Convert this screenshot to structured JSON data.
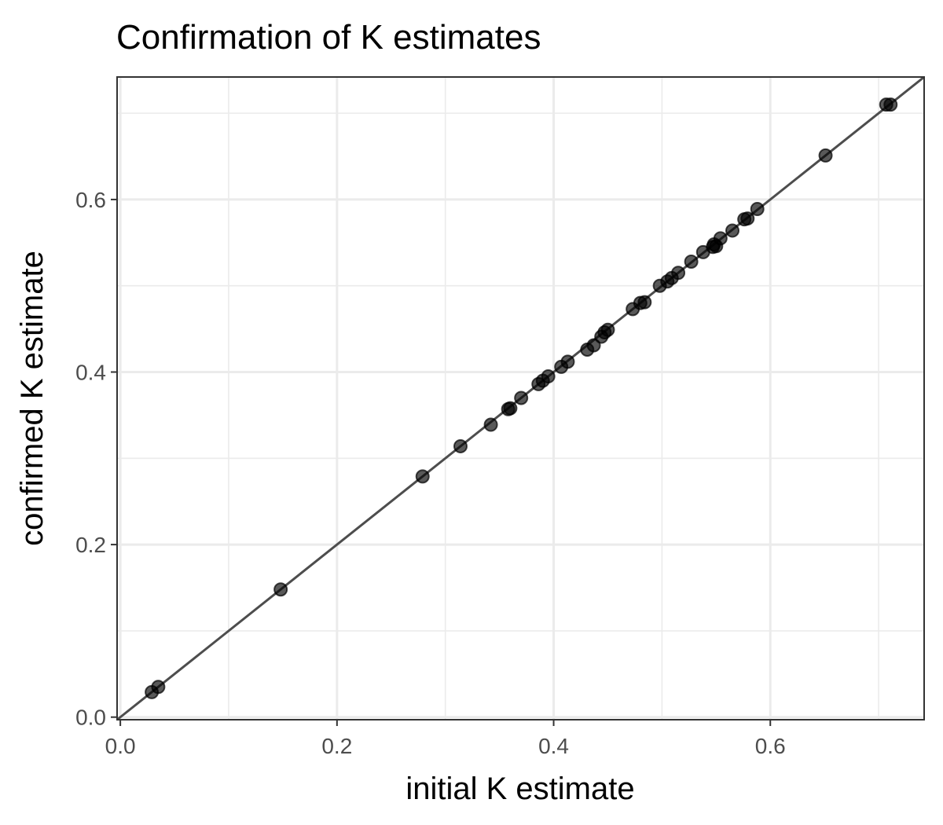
{
  "chart_data": {
    "type": "scatter",
    "title": "Confirmation of K estimates",
    "xlabel": "initial K estimate",
    "ylabel": "confirmed K estimate",
    "xlim": [
      -0.003,
      0.742
    ],
    "ylim": [
      -0.003,
      0.742
    ],
    "x_ticks": [
      0.0,
      0.2,
      0.4,
      0.6
    ],
    "y_ticks": [
      0.0,
      0.2,
      0.4,
      0.6
    ],
    "x_tick_labels": [
      "0.0",
      "0.2",
      "0.4",
      "0.6"
    ],
    "y_tick_labels": [
      "0.0",
      "0.2",
      "0.4",
      "0.6"
    ],
    "grid": true,
    "reference_line": {
      "slope": 1,
      "intercept": 0
    },
    "points": [
      {
        "x": 0.029,
        "y": 0.029
      },
      {
        "x": 0.035,
        "y": 0.035
      },
      {
        "x": 0.148,
        "y": 0.148
      },
      {
        "x": 0.279,
        "y": 0.279
      },
      {
        "x": 0.314,
        "y": 0.314
      },
      {
        "x": 0.342,
        "y": 0.339
      },
      {
        "x": 0.358,
        "y": 0.357
      },
      {
        "x": 0.36,
        "y": 0.358
      },
      {
        "x": 0.37,
        "y": 0.37
      },
      {
        "x": 0.386,
        "y": 0.386
      },
      {
        "x": 0.39,
        "y": 0.39
      },
      {
        "x": 0.395,
        "y": 0.395
      },
      {
        "x": 0.407,
        "y": 0.406
      },
      {
        "x": 0.413,
        "y": 0.412
      },
      {
        "x": 0.431,
        "y": 0.426
      },
      {
        "x": 0.437,
        "y": 0.431
      },
      {
        "x": 0.444,
        "y": 0.441
      },
      {
        "x": 0.447,
        "y": 0.446
      },
      {
        "x": 0.45,
        "y": 0.449
      },
      {
        "x": 0.473,
        "y": 0.473
      },
      {
        "x": 0.48,
        "y": 0.48
      },
      {
        "x": 0.484,
        "y": 0.481
      },
      {
        "x": 0.498,
        "y": 0.5
      },
      {
        "x": 0.505,
        "y": 0.505
      },
      {
        "x": 0.509,
        "y": 0.509
      },
      {
        "x": 0.515,
        "y": 0.515
      },
      {
        "x": 0.527,
        "y": 0.528
      },
      {
        "x": 0.538,
        "y": 0.539
      },
      {
        "x": 0.547,
        "y": 0.545
      },
      {
        "x": 0.548,
        "y": 0.548
      },
      {
        "x": 0.55,
        "y": 0.546
      },
      {
        "x": 0.554,
        "y": 0.555
      },
      {
        "x": 0.565,
        "y": 0.564
      },
      {
        "x": 0.576,
        "y": 0.577
      },
      {
        "x": 0.579,
        "y": 0.578
      },
      {
        "x": 0.588,
        "y": 0.589
      },
      {
        "x": 0.651,
        "y": 0.651
      },
      {
        "x": 0.707,
        "y": 0.71
      },
      {
        "x": 0.711,
        "y": 0.71
      }
    ],
    "colors": {
      "point": "#000000",
      "reference_line": "#4d4d4d",
      "grid": "#ebebeb",
      "panel_border": "#333333",
      "tick_label": "#4d4d4d"
    }
  }
}
